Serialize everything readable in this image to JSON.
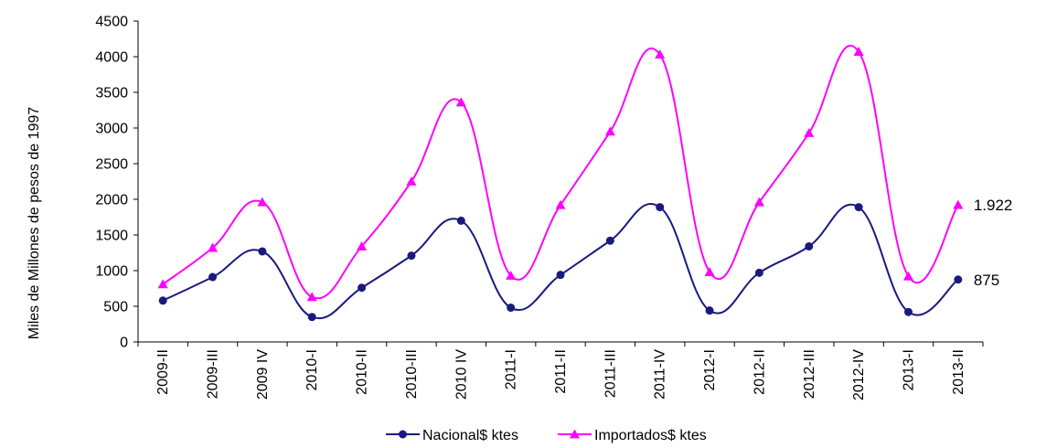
{
  "chart_data": {
    "type": "line",
    "ylabel": "Miles de Millones de pesos de 1997",
    "ylim": [
      0,
      4500
    ],
    "yticks": [
      0,
      500,
      1000,
      1500,
      2000,
      2500,
      3000,
      3500,
      4000,
      4500
    ],
    "categories": [
      "2009-II",
      "2009-III",
      "2009 IV",
      "2010-I",
      "2010-II",
      "2010-III",
      "2010 IV",
      "2011-I",
      "2011-II",
      "2011-III",
      "2011-IV",
      "2012-I",
      "2012-II",
      "2012-III",
      "2012-IV",
      "2013-I",
      "2013-II"
    ],
    "series": [
      {
        "name": "Nacional$ ktes",
        "color": "#1a1a7e",
        "marker": "circle",
        "values": [
          580,
          910,
          1270,
          350,
          760,
          1210,
          1700,
          480,
          940,
          1420,
          1890,
          440,
          970,
          1340,
          1890,
          420,
          875
        ],
        "end_label": "875"
      },
      {
        "name": "Importados$ ktes",
        "color": "#ff00ff",
        "marker": "triangle",
        "values": [
          810,
          1320,
          1960,
          630,
          1340,
          2250,
          3360,
          930,
          1920,
          2950,
          4030,
          980,
          1960,
          2930,
          4070,
          920,
          1922
        ],
        "end_label": "1.922"
      }
    ],
    "legend_position": "bottom"
  }
}
